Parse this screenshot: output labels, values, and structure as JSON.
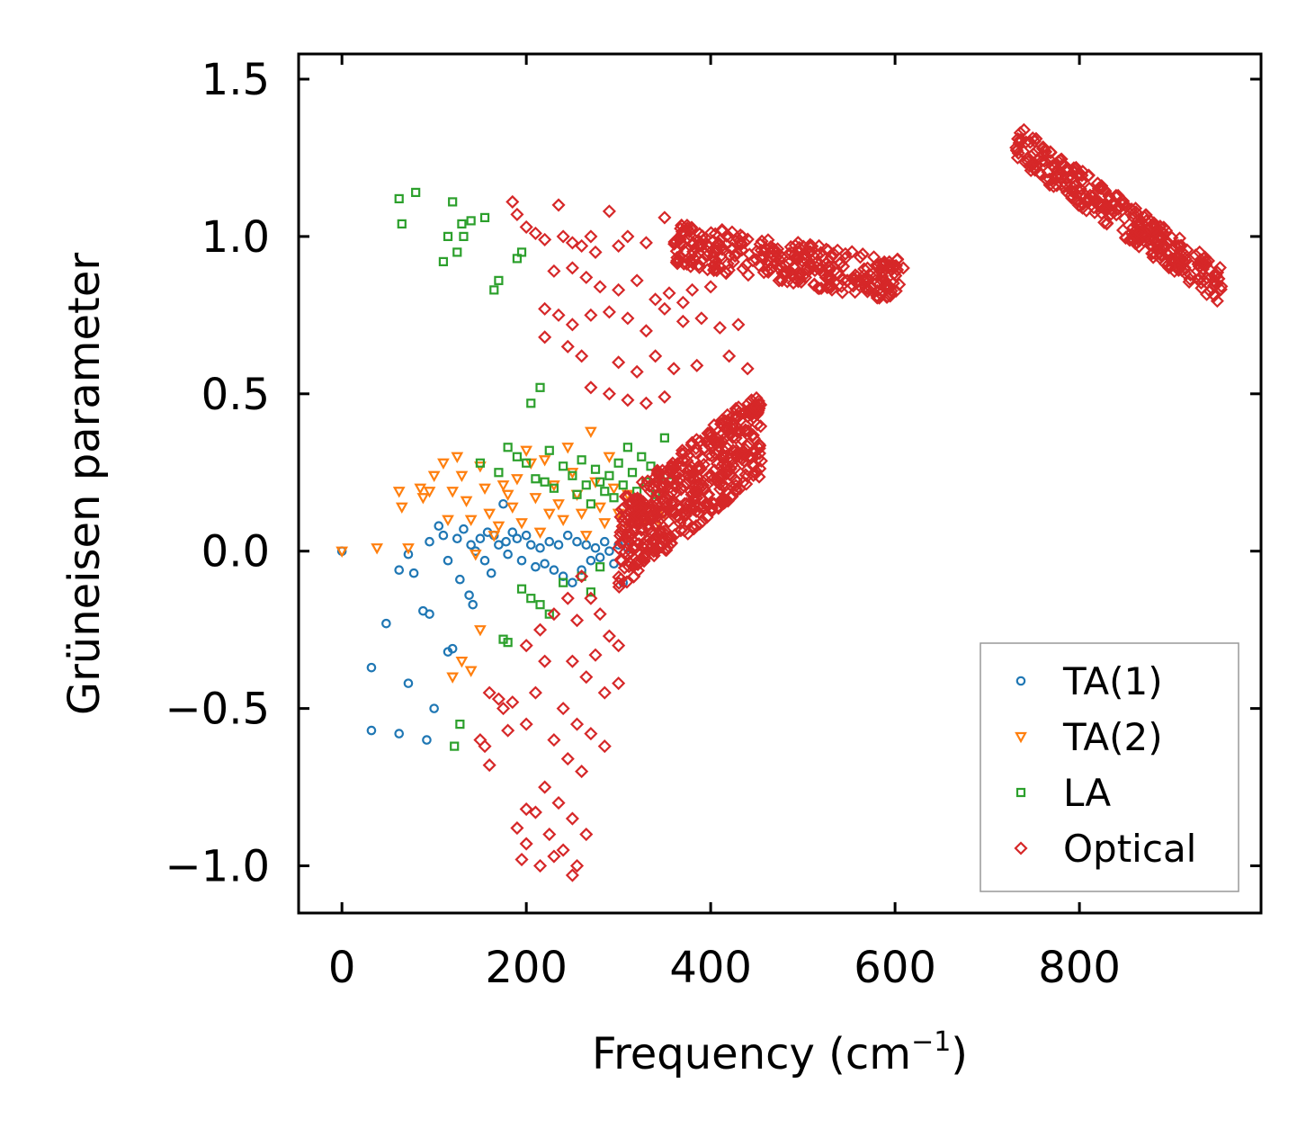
{
  "chart_data": {
    "type": "scatter",
    "title": "",
    "xlabel": "Frequency (cm",
    "xlabel_sup": "−1",
    "xlabel_end": ")",
    "ylabel": "Grüneisen parameter",
    "xlim": [
      -47,
      997
    ],
    "ylim": [
      -1.15,
      1.58
    ],
    "x_ticks": [
      0,
      200,
      400,
      600,
      800
    ],
    "x_tick_labels": [
      "0",
      "200",
      "400",
      "600",
      "800"
    ],
    "y_ticks": [
      -1.0,
      -0.5,
      0.0,
      0.5,
      1.0,
      1.5
    ],
    "y_tick_labels": [
      "−1.0",
      "−0.5",
      "0.0",
      "0.5",
      "1.0",
      "1.5"
    ],
    "legend_position": "lower-right",
    "grid": false,
    "series": [
      {
        "name": "TA(1)",
        "marker": "circle",
        "color": "#1f77b4",
        "points": [
          [
            0,
            0.0
          ],
          [
            32,
            -0.37
          ],
          [
            32,
            -0.57
          ],
          [
            48,
            -0.23
          ],
          [
            62,
            -0.06
          ],
          [
            62,
            -0.58
          ],
          [
            72,
            -0.01
          ],
          [
            72,
            -0.42
          ],
          [
            78,
            -0.07
          ],
          [
            88,
            -0.19
          ],
          [
            92,
            -0.6
          ],
          [
            95,
            -0.2
          ],
          [
            100,
            -0.5
          ],
          [
            95,
            0.03
          ],
          [
            105,
            0.08
          ],
          [
            110,
            0.05
          ],
          [
            115,
            -0.03
          ],
          [
            115,
            -0.32
          ],
          [
            120,
            -0.31
          ],
          [
            125,
            0.04
          ],
          [
            128,
            -0.09
          ],
          [
            132,
            0.07
          ],
          [
            138,
            -0.14
          ],
          [
            142,
            -0.17
          ],
          [
            140,
            0.02
          ],
          [
            145,
            0.0
          ],
          [
            150,
            0.04
          ],
          [
            155,
            -0.03
          ],
          [
            158,
            0.06
          ],
          [
            162,
            -0.07
          ],
          [
            165,
            0.05
          ],
          [
            170,
            0.02
          ],
          [
            175,
            0.15
          ],
          [
            178,
            0.03
          ],
          [
            180,
            -0.01
          ],
          [
            185,
            0.06
          ],
          [
            190,
            0.04
          ],
          [
            195,
            -0.03
          ],
          [
            200,
            0.05
          ],
          [
            205,
            0.02
          ],
          [
            210,
            -0.05
          ],
          [
            215,
            0.01
          ],
          [
            220,
            -0.04
          ],
          [
            225,
            0.03
          ],
          [
            230,
            -0.06
          ],
          [
            235,
            0.02
          ],
          [
            240,
            -0.08
          ],
          [
            245,
            0.05
          ],
          [
            250,
            -0.1
          ],
          [
            255,
            0.03
          ],
          [
            260,
            -0.06
          ],
          [
            265,
            0.02
          ],
          [
            270,
            -0.03
          ],
          [
            275,
            0.01
          ],
          [
            280,
            -0.02
          ],
          [
            285,
            0.03
          ],
          [
            290,
            0.0
          ],
          [
            295,
            -0.04
          ],
          [
            300,
            0.02
          ],
          [
            305,
            -0.1
          ],
          [
            310,
            0.01
          ]
        ]
      },
      {
        "name": "TA(2)",
        "marker": "triangle-down",
        "color": "#ff7f0e",
        "points": [
          [
            0,
            0.0
          ],
          [
            38,
            0.01
          ],
          [
            62,
            0.19
          ],
          [
            65,
            0.14
          ],
          [
            72,
            0.01
          ],
          [
            85,
            0.2
          ],
          [
            88,
            0.17
          ],
          [
            95,
            0.19
          ],
          [
            100,
            0.24
          ],
          [
            110,
            0.28
          ],
          [
            115,
            0.1
          ],
          [
            120,
            0.19
          ],
          [
            125,
            0.3
          ],
          [
            130,
            0.24
          ],
          [
            135,
            0.16
          ],
          [
            140,
            0.1
          ],
          [
            145,
            -0.01
          ],
          [
            150,
            0.27
          ],
          [
            155,
            0.2
          ],
          [
            160,
            0.12
          ],
          [
            165,
            0.05
          ],
          [
            170,
            0.08
          ],
          [
            175,
            0.21
          ],
          [
            180,
            0.18
          ],
          [
            185,
            0.14
          ],
          [
            190,
            0.23
          ],
          [
            195,
            0.09
          ],
          [
            200,
            0.32
          ],
          [
            205,
            0.28
          ],
          [
            210,
            0.17
          ],
          [
            215,
            0.06
          ],
          [
            220,
            0.29
          ],
          [
            225,
            0.12
          ],
          [
            230,
            0.21
          ],
          [
            235,
            0.15
          ],
          [
            240,
            0.1
          ],
          [
            245,
            0.33
          ],
          [
            250,
            0.25
          ],
          [
            255,
            0.18
          ],
          [
            260,
            0.12
          ],
          [
            265,
            0.05
          ],
          [
            270,
            0.38
          ],
          [
            275,
            0.22
          ],
          [
            280,
            0.14
          ],
          [
            285,
            0.09
          ],
          [
            290,
            0.3
          ],
          [
            295,
            0.2
          ],
          [
            300,
            0.12
          ],
          [
            305,
            0.07
          ],
          [
            310,
            0.18
          ],
          [
            320,
            0.15
          ],
          [
            330,
            0.1
          ],
          [
            340,
            0.08
          ],
          [
            350,
            0.12
          ],
          [
            140,
            -0.38
          ],
          [
            150,
            -0.25
          ],
          [
            130,
            -0.35
          ],
          [
            120,
            -0.4
          ]
        ]
      },
      {
        "name": "LA",
        "marker": "square",
        "color": "#2ca02c",
        "points": [
          [
            62,
            1.12
          ],
          [
            65,
            1.04
          ],
          [
            80,
            1.14
          ],
          [
            110,
            0.92
          ],
          [
            115,
            1.0
          ],
          [
            120,
            1.11
          ],
          [
            125,
            0.95
          ],
          [
            130,
            1.04
          ],
          [
            132,
            1.0
          ],
          [
            140,
            1.05
          ],
          [
            155,
            1.06
          ],
          [
            165,
            0.83
          ],
          [
            170,
            0.86
          ],
          [
            190,
            0.93
          ],
          [
            195,
            0.95
          ],
          [
            205,
            0.47
          ],
          [
            215,
            0.52
          ],
          [
            122,
            -0.62
          ],
          [
            128,
            -0.55
          ],
          [
            175,
            -0.28
          ],
          [
            180,
            -0.29
          ],
          [
            195,
            -0.12
          ],
          [
            205,
            -0.15
          ],
          [
            215,
            -0.17
          ],
          [
            225,
            -0.2
          ],
          [
            150,
            0.28
          ],
          [
            170,
            0.25
          ],
          [
            180,
            0.33
          ],
          [
            190,
            0.3
          ],
          [
            200,
            0.28
          ],
          [
            210,
            0.23
          ],
          [
            220,
            0.22
          ],
          [
            225,
            0.32
          ],
          [
            230,
            0.2
          ],
          [
            240,
            0.27
          ],
          [
            250,
            0.24
          ],
          [
            255,
            0.18
          ],
          [
            260,
            0.29
          ],
          [
            265,
            0.21
          ],
          [
            270,
            0.15
          ],
          [
            275,
            0.26
          ],
          [
            280,
            0.22
          ],
          [
            285,
            0.19
          ],
          [
            290,
            0.24
          ],
          [
            295,
            0.17
          ],
          [
            300,
            0.28
          ],
          [
            305,
            0.21
          ],
          [
            310,
            0.33
          ],
          [
            315,
            0.25
          ],
          [
            320,
            0.19
          ],
          [
            325,
            0.3
          ],
          [
            330,
            0.22
          ],
          [
            335,
            0.27
          ],
          [
            340,
            0.18
          ],
          [
            345,
            0.24
          ],
          [
            350,
            0.36
          ],
          [
            355,
            0.22
          ],
          [
            240,
            -0.1
          ],
          [
            260,
            -0.08
          ],
          [
            270,
            -0.13
          ],
          [
            280,
            -0.05
          ]
        ]
      },
      {
        "name": "Optical",
        "marker": "diamond",
        "color": "#d62728",
        "clusters": [
          {
            "x_start": 730,
            "x_end": 955,
            "y_start": 1.3,
            "y_end": 0.84,
            "spread": 0.06,
            "count": 320
          },
          {
            "x_start": 360,
            "x_end": 610,
            "y_start": 0.98,
            "y_end": 0.86,
            "spread": 0.07,
            "count": 320
          },
          {
            "x_start": 300,
            "x_end": 455,
            "y_start": 0.02,
            "y_end": 0.38,
            "spread": 0.14,
            "count": 480
          }
        ],
        "points": [
          [
            185,
            1.11
          ],
          [
            190,
            1.07
          ],
          [
            200,
            1.03
          ],
          [
            210,
            1.01
          ],
          [
            220,
            0.99
          ],
          [
            235,
            1.1
          ],
          [
            240,
            1.0
          ],
          [
            250,
            0.98
          ],
          [
            260,
            0.97
          ],
          [
            270,
            1.0
          ],
          [
            275,
            0.95
          ],
          [
            290,
            1.08
          ],
          [
            300,
            0.97
          ],
          [
            310,
            1.0
          ],
          [
            330,
            0.98
          ],
          [
            350,
            1.06
          ],
          [
            230,
            0.89
          ],
          [
            250,
            0.9
          ],
          [
            265,
            0.87
          ],
          [
            280,
            0.84
          ],
          [
            300,
            0.83
          ],
          [
            320,
            0.86
          ],
          [
            340,
            0.8
          ],
          [
            355,
            0.82
          ],
          [
            370,
            0.79
          ],
          [
            380,
            0.83
          ],
          [
            400,
            0.84
          ],
          [
            220,
            0.77
          ],
          [
            235,
            0.75
          ],
          [
            250,
            0.72
          ],
          [
            270,
            0.75
          ],
          [
            290,
            0.76
          ],
          [
            310,
            0.74
          ],
          [
            330,
            0.7
          ],
          [
            350,
            0.77
          ],
          [
            370,
            0.73
          ],
          [
            390,
            0.74
          ],
          [
            410,
            0.71
          ],
          [
            430,
            0.72
          ],
          [
            220,
            0.68
          ],
          [
            245,
            0.65
          ],
          [
            260,
            0.62
          ],
          [
            300,
            0.6
          ],
          [
            320,
            0.57
          ],
          [
            340,
            0.62
          ],
          [
            360,
            0.58
          ],
          [
            385,
            0.59
          ],
          [
            420,
            0.62
          ],
          [
            440,
            0.58
          ],
          [
            270,
            0.52
          ],
          [
            290,
            0.5
          ],
          [
            310,
            0.48
          ],
          [
            330,
            0.47
          ],
          [
            350,
            0.49
          ],
          [
            260,
            -0.08
          ],
          [
            270,
            -0.15
          ],
          [
            280,
            -0.2
          ],
          [
            290,
            -0.27
          ],
          [
            300,
            -0.3
          ],
          [
            250,
            -0.35
          ],
          [
            265,
            -0.4
          ],
          [
            285,
            -0.45
          ],
          [
            300,
            -0.42
          ],
          [
            240,
            -0.5
          ],
          [
            255,
            -0.55
          ],
          [
            270,
            -0.58
          ],
          [
            285,
            -0.62
          ],
          [
            230,
            -0.6
          ],
          [
            245,
            -0.66
          ],
          [
            260,
            -0.7
          ],
          [
            220,
            -0.75
          ],
          [
            235,
            -0.8
          ],
          [
            250,
            -0.85
          ],
          [
            265,
            -0.9
          ],
          [
            210,
            -0.83
          ],
          [
            225,
            -0.9
          ],
          [
            240,
            -0.95
          ],
          [
            255,
            -1.0
          ],
          [
            200,
            -0.93
          ],
          [
            215,
            -1.0
          ],
          [
            230,
            -0.97
          ],
          [
            250,
            -1.03
          ],
          [
            190,
            -0.88
          ],
          [
            200,
            -0.82
          ],
          [
            195,
            -0.98
          ],
          [
            175,
            -0.5
          ],
          [
            180,
            -0.57
          ],
          [
            185,
            -0.48
          ],
          [
            160,
            -0.45
          ],
          [
            170,
            -0.47
          ],
          [
            150,
            -0.6
          ],
          [
            160,
            -0.68
          ],
          [
            155,
            -0.62
          ],
          [
            200,
            -0.55
          ],
          [
            210,
            -0.45
          ],
          [
            220,
            -0.35
          ],
          [
            200,
            -0.3
          ],
          [
            215,
            -0.25
          ],
          [
            230,
            -0.2
          ],
          [
            245,
            -0.15
          ],
          [
            255,
            -0.22
          ],
          [
            275,
            -0.33
          ]
        ]
      }
    ]
  }
}
